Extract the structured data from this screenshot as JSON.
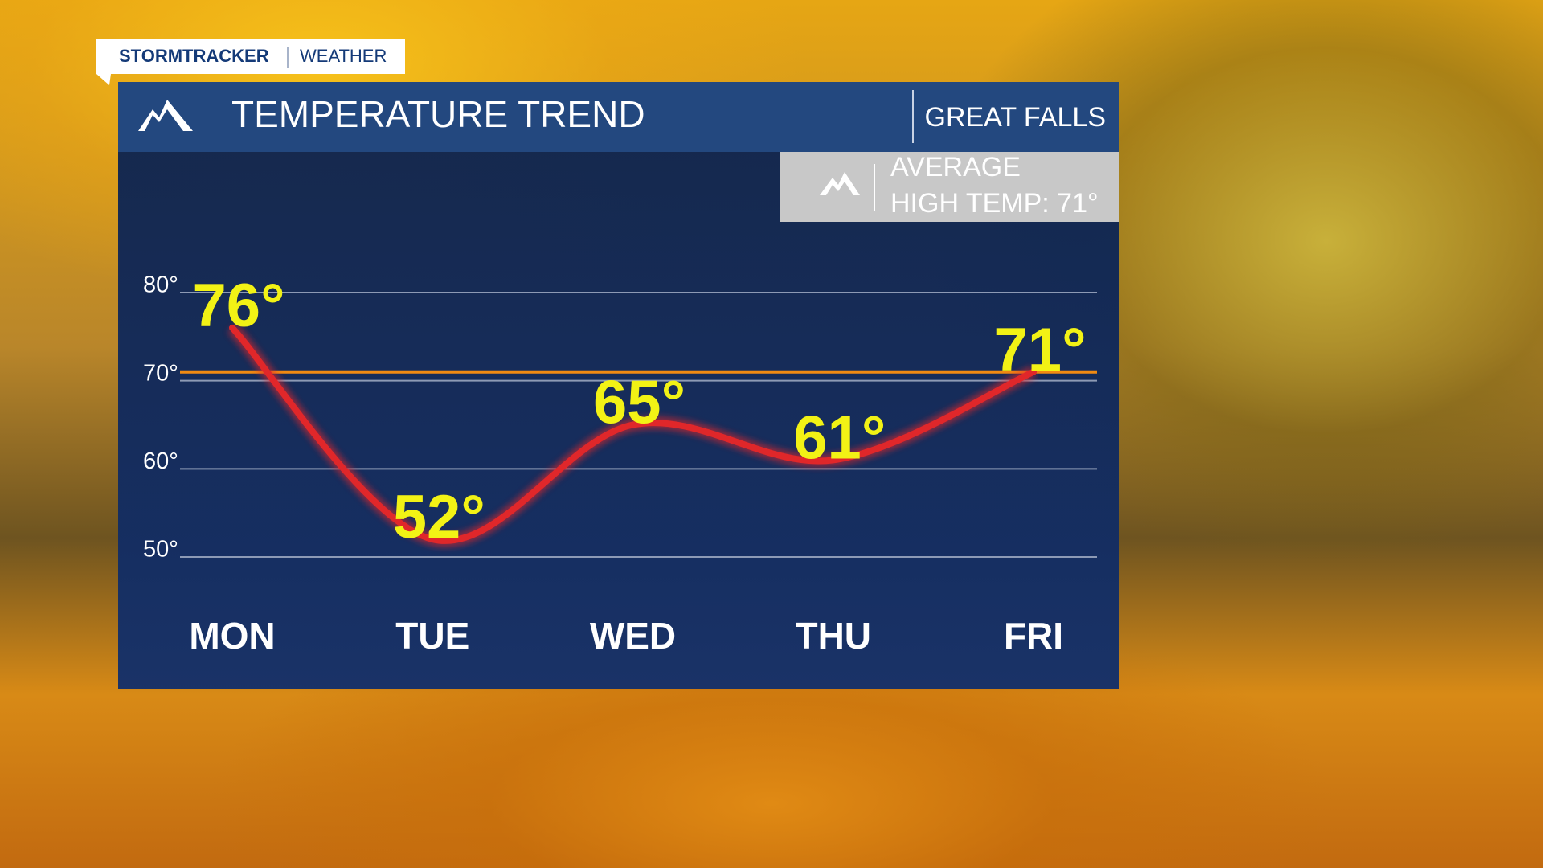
{
  "header": {
    "brand": "STORMTRACKER",
    "section": "WEATHER"
  },
  "chart_data": {
    "type": "line",
    "title": "TEMPERATURE TREND",
    "location": "GREAT FALLS",
    "categories": [
      "MON",
      "TUE",
      "WED",
      "THU",
      "FRI"
    ],
    "series": [
      {
        "color": "#e0272a",
        "values": [
          76,
          52,
          65,
          61,
          71
        ],
        "value_labels": [
          "76°",
          "52°",
          "65°",
          "61°",
          "71°"
        ]
      }
    ],
    "ylim": [
      50,
      80
    ],
    "yticks": [
      {
        "value": 50,
        "label": "50°"
      },
      {
        "value": 60,
        "label": "60°"
      },
      {
        "value": 70,
        "label": "70°"
      },
      {
        "value": 80,
        "label": "80°"
      }
    ],
    "grid": true,
    "reference_line": {
      "value": 71,
      "color": "#f08a12",
      "label_lines": [
        "AVERAGE",
        "HIGH TEMP: 71°"
      ]
    }
  }
}
